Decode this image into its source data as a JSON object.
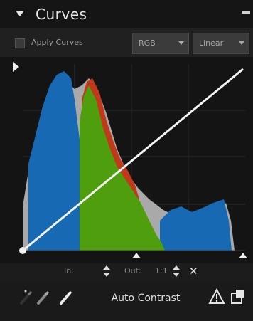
{
  "panel": {
    "title": "Curves"
  },
  "options": {
    "apply_label": "Apply Curves",
    "dropdown1_value": "RGB",
    "dropdown2_value": "Linear"
  },
  "graph": {
    "curve_start": [
      0,
      0
    ],
    "curve_end": [
      255,
      255
    ]
  },
  "zoom": {
    "input_label": "In:",
    "output_label": "Out:",
    "zoom_label": "1:1"
  },
  "toolbar": {
    "auto_contrast_label": "Auto Contrast"
  },
  "colors": {
    "histogram_luminance": "#a9a9a9",
    "histogram_blue": "#1769b3",
    "histogram_green": "#4e9e0e",
    "histogram_red": "#c0391b",
    "curve": "#f4f4f4",
    "grid": "#2c2c2c"
  },
  "icons": {
    "collapse": "triangle-down-icon",
    "menu": "menu-icon",
    "black_point": "eyedropper-black-icon",
    "gray_point": "eyedropper-gray-icon",
    "white_point": "eyedropper-white-icon",
    "clipping": "clipping-warning-icon",
    "reset": "reset-icon"
  }
}
